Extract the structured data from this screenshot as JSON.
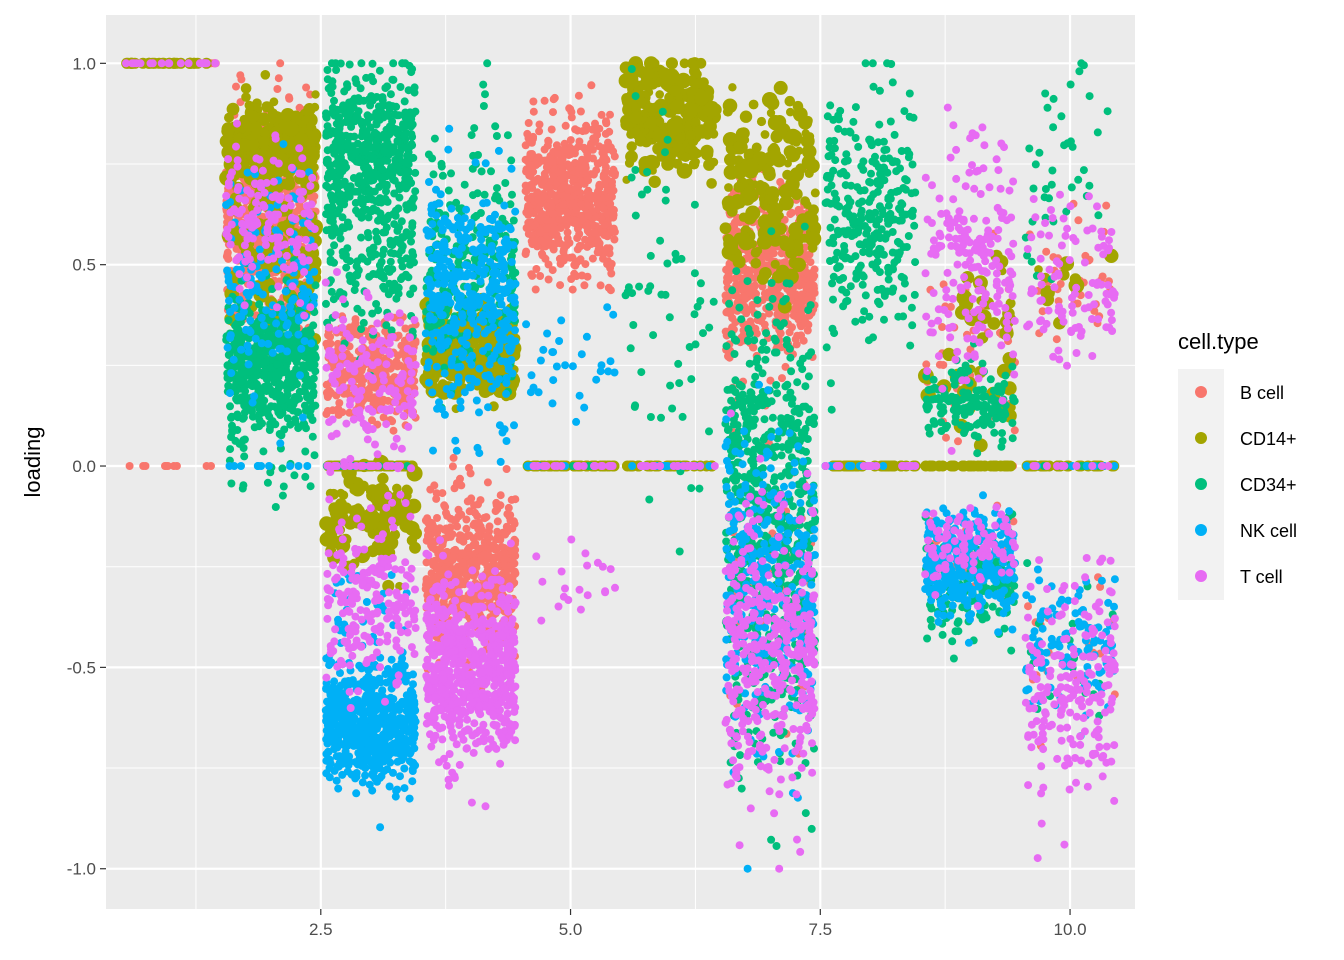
{
  "chart_data": {
    "type": "scatter",
    "title": "",
    "xlabel": "",
    "ylabel": "loading",
    "xlim": [
      0.35,
      10.65
    ],
    "ylim": [
      -1.1,
      1.12
    ],
    "x_ticks": [
      2.5,
      5.0,
      7.5,
      10.0
    ],
    "x_tick_labels": [
      "2.5",
      "5.0",
      "7.5",
      "10.0"
    ],
    "y_ticks": [
      1.0,
      0.5,
      0.0,
      -0.5,
      -1.0
    ],
    "y_tick_labels": [
      "1.0",
      "0.5",
      "0.0",
      "-0.5",
      "-1.0"
    ],
    "grid": true,
    "legend": {
      "title": "cell.type",
      "placement": "right",
      "entries": [
        "B cell",
        "CD14+",
        "CD34+",
        "NK cell",
        "T cell"
      ]
    },
    "colors": {
      "B cell": "#F8766D",
      "CD14+": "#A3A500",
      "CD34+": "#00BF7D",
      "NK cell": "#00B0F6",
      "T cell": "#E76BF3"
    },
    "panel_background": "#EBEBEB",
    "gridline_color": "#FFFFFF",
    "jitter_width": 0.45,
    "series": [
      {
        "name": "B cell",
        "clusters": [
          [
            1,
            1.0,
            0.0,
            20
          ],
          [
            1,
            0.0,
            0.0,
            10
          ],
          [
            2,
            0.62,
            0.12,
            600
          ],
          [
            3,
            0.24,
            0.06,
            350
          ],
          [
            3,
            0.0,
            0.0,
            30
          ],
          [
            4,
            -0.27,
            0.1,
            600
          ],
          [
            5,
            0.66,
            0.1,
            600
          ],
          [
            5,
            0.0,
            0.0,
            30
          ],
          [
            6,
            0.0,
            0.0,
            20
          ],
          [
            7,
            0.47,
            0.1,
            500
          ],
          [
            7,
            -0.3,
            0.15,
            60
          ],
          [
            8,
            0.0,
            0.0,
            40
          ],
          [
            9,
            0.28,
            0.1,
            40
          ],
          [
            9,
            -0.22,
            0.05,
            30
          ],
          [
            9,
            0.0,
            0.0,
            20
          ],
          [
            10,
            0.45,
            0.08,
            40
          ],
          [
            10,
            -0.45,
            0.1,
            20
          ],
          [
            10,
            0.0,
            0.0,
            20
          ]
        ]
      },
      {
        "name": "CD14+",
        "clusters": [
          [
            1,
            1.0,
            0.0,
            30
          ],
          [
            2,
            0.8,
            0.05,
            250
          ],
          [
            2,
            0.55,
            0.1,
            100
          ],
          [
            3,
            0.0,
            0.0,
            60
          ],
          [
            3,
            -0.13,
            0.05,
            120
          ],
          [
            4,
            0.28,
            0.06,
            250
          ],
          [
            5,
            0.0,
            0.0,
            40
          ],
          [
            6,
            0.87,
            0.07,
            220
          ],
          [
            6,
            0.0,
            0.0,
            30
          ],
          [
            7,
            0.8,
            0.06,
            80
          ],
          [
            7,
            0.6,
            0.08,
            100
          ],
          [
            8,
            0.0,
            0.0,
            40
          ],
          [
            9,
            0.38,
            0.05,
            20
          ],
          [
            9,
            0.2,
            0.05,
            20
          ],
          [
            9,
            0.0,
            0.0,
            30
          ],
          [
            10,
            0.0,
            0.0,
            30
          ],
          [
            10,
            0.45,
            0.05,
            10
          ]
        ]
      },
      {
        "name": "CD34+",
        "clusters": [
          [
            2,
            0.25,
            0.08,
            600
          ],
          [
            2,
            0.0,
            0.05,
            20
          ],
          [
            3,
            0.78,
            0.1,
            500
          ],
          [
            3,
            0.5,
            0.1,
            150
          ],
          [
            3,
            0.0,
            0.0,
            20
          ],
          [
            4,
            0.5,
            0.15,
            250
          ],
          [
            5,
            0.0,
            0.0,
            10
          ],
          [
            6,
            0.4,
            0.25,
            60
          ],
          [
            7,
            -0.2,
            0.25,
            500
          ],
          [
            7,
            0.15,
            0.15,
            150
          ],
          [
            8,
            0.62,
            0.15,
            300
          ],
          [
            9,
            0.15,
            0.05,
            150
          ],
          [
            9,
            -0.3,
            0.07,
            150
          ],
          [
            10,
            0.75,
            0.15,
            40
          ],
          [
            10,
            -0.45,
            0.1,
            20
          ],
          [
            10,
            0.0,
            0.0,
            10
          ]
        ]
      },
      {
        "name": "NK cell",
        "clusters": [
          [
            2,
            0.45,
            0.12,
            150
          ],
          [
            2,
            0.0,
            0.0,
            10
          ],
          [
            3,
            -0.64,
            0.07,
            600
          ],
          [
            3,
            -0.4,
            0.07,
            40
          ],
          [
            4,
            0.45,
            0.12,
            350
          ],
          [
            4,
            0.18,
            0.08,
            40
          ],
          [
            5,
            0.25,
            0.07,
            30
          ],
          [
            5,
            0.0,
            0.0,
            10
          ],
          [
            6,
            0.0,
            0.0,
            20
          ],
          [
            7,
            -0.3,
            0.2,
            300
          ],
          [
            8,
            0.0,
            0.0,
            20
          ],
          [
            9,
            -0.24,
            0.07,
            300
          ],
          [
            10,
            -0.45,
            0.08,
            100
          ],
          [
            10,
            0.0,
            0.0,
            10
          ]
        ]
      },
      {
        "name": "T cell",
        "clusters": [
          [
            1,
            1.0,
            0.0,
            20
          ],
          [
            2,
            0.6,
            0.1,
            150
          ],
          [
            3,
            0.2,
            0.1,
            150
          ],
          [
            3,
            -0.35,
            0.1,
            200
          ],
          [
            3,
            0.0,
            0.0,
            20
          ],
          [
            4,
            -0.5,
            0.1,
            700
          ],
          [
            5,
            -0.3,
            0.04,
            20
          ],
          [
            5,
            0.0,
            0.0,
            20
          ],
          [
            6,
            0.0,
            0.0,
            20
          ],
          [
            7,
            -0.45,
            0.18,
            400
          ],
          [
            8,
            0.0,
            0.0,
            20
          ],
          [
            9,
            0.5,
            0.15,
            200
          ],
          [
            9,
            -0.2,
            0.05,
            100
          ],
          [
            10,
            -0.55,
            0.15,
            200
          ],
          [
            10,
            0.45,
            0.12,
            100
          ],
          [
            10,
            0.0,
            0.0,
            10
          ]
        ]
      }
    ]
  }
}
